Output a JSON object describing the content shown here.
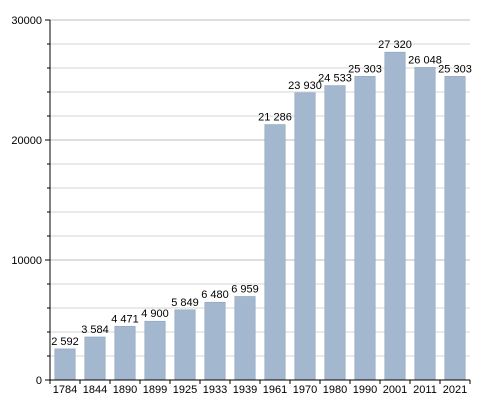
{
  "chart_data": {
    "type": "bar",
    "title": "",
    "xlabel": "",
    "ylabel": "",
    "categories": [
      "1784",
      "1844",
      "1890",
      "1899",
      "1925",
      "1933",
      "1939",
      "1961",
      "1970",
      "1980",
      "1990",
      "2001",
      "2011",
      "2021"
    ],
    "values": [
      2592,
      3584,
      4471,
      4900,
      5849,
      6480,
      6959,
      21286,
      23930,
      24533,
      25303,
      27320,
      26048,
      25303
    ],
    "value_labels": [
      "2 592",
      "3 584",
      "4 471",
      "4 900",
      "5 849",
      "6 480",
      "6 959",
      "21 286",
      "23 930",
      "24 533",
      "25 303",
      "27 320",
      "26 048",
      "25 303"
    ],
    "ylim": [
      0,
      30000
    ],
    "y_ticks": [
      0,
      10000,
      20000,
      30000
    ],
    "y_tick_labels": [
      "0",
      "10000",
      "20000",
      "30000"
    ],
    "grid": true,
    "legend": "none",
    "colors": {
      "bar": "#a3b8cf",
      "bar_edge": "#8fa3bb",
      "grid": "#d6d6d6",
      "axis": "#000000",
      "text": "#000000"
    }
  }
}
